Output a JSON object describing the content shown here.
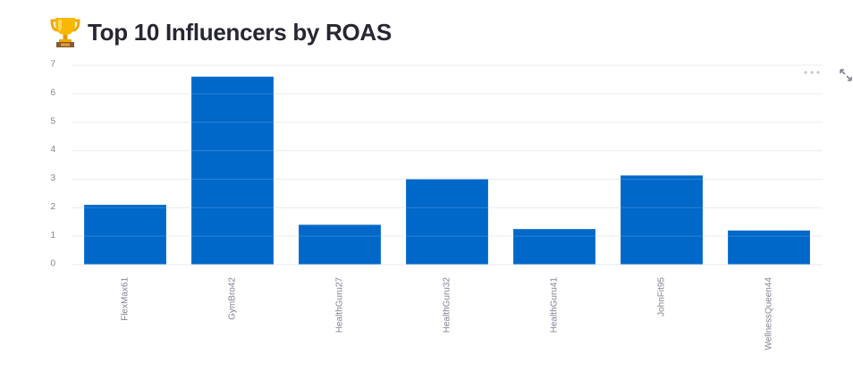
{
  "header": {
    "title": "Top 10 Influencers by ROAS",
    "icon": "trophy-icon"
  },
  "toolbar": {
    "more_icon": "more-horizontal-icon",
    "expand_icon": "fullscreen-expand-icon"
  },
  "chart_data": {
    "type": "bar",
    "categories": [
      "FlexMax61",
      "GymBro42",
      "HealthGuru27",
      "HealthGuru32",
      "HealthGuru41",
      "JohnFit95",
      "WellnessQueen44"
    ],
    "values": [
      2.1,
      6.6,
      1.4,
      3.0,
      1.25,
      3.13,
      1.2
    ],
    "ylim": [
      0,
      7
    ],
    "yticks": [
      0,
      1,
      2,
      3,
      4,
      5,
      6,
      7
    ],
    "grid": true,
    "bar_color": "#0068c9",
    "xlabel": "",
    "ylabel": ""
  }
}
